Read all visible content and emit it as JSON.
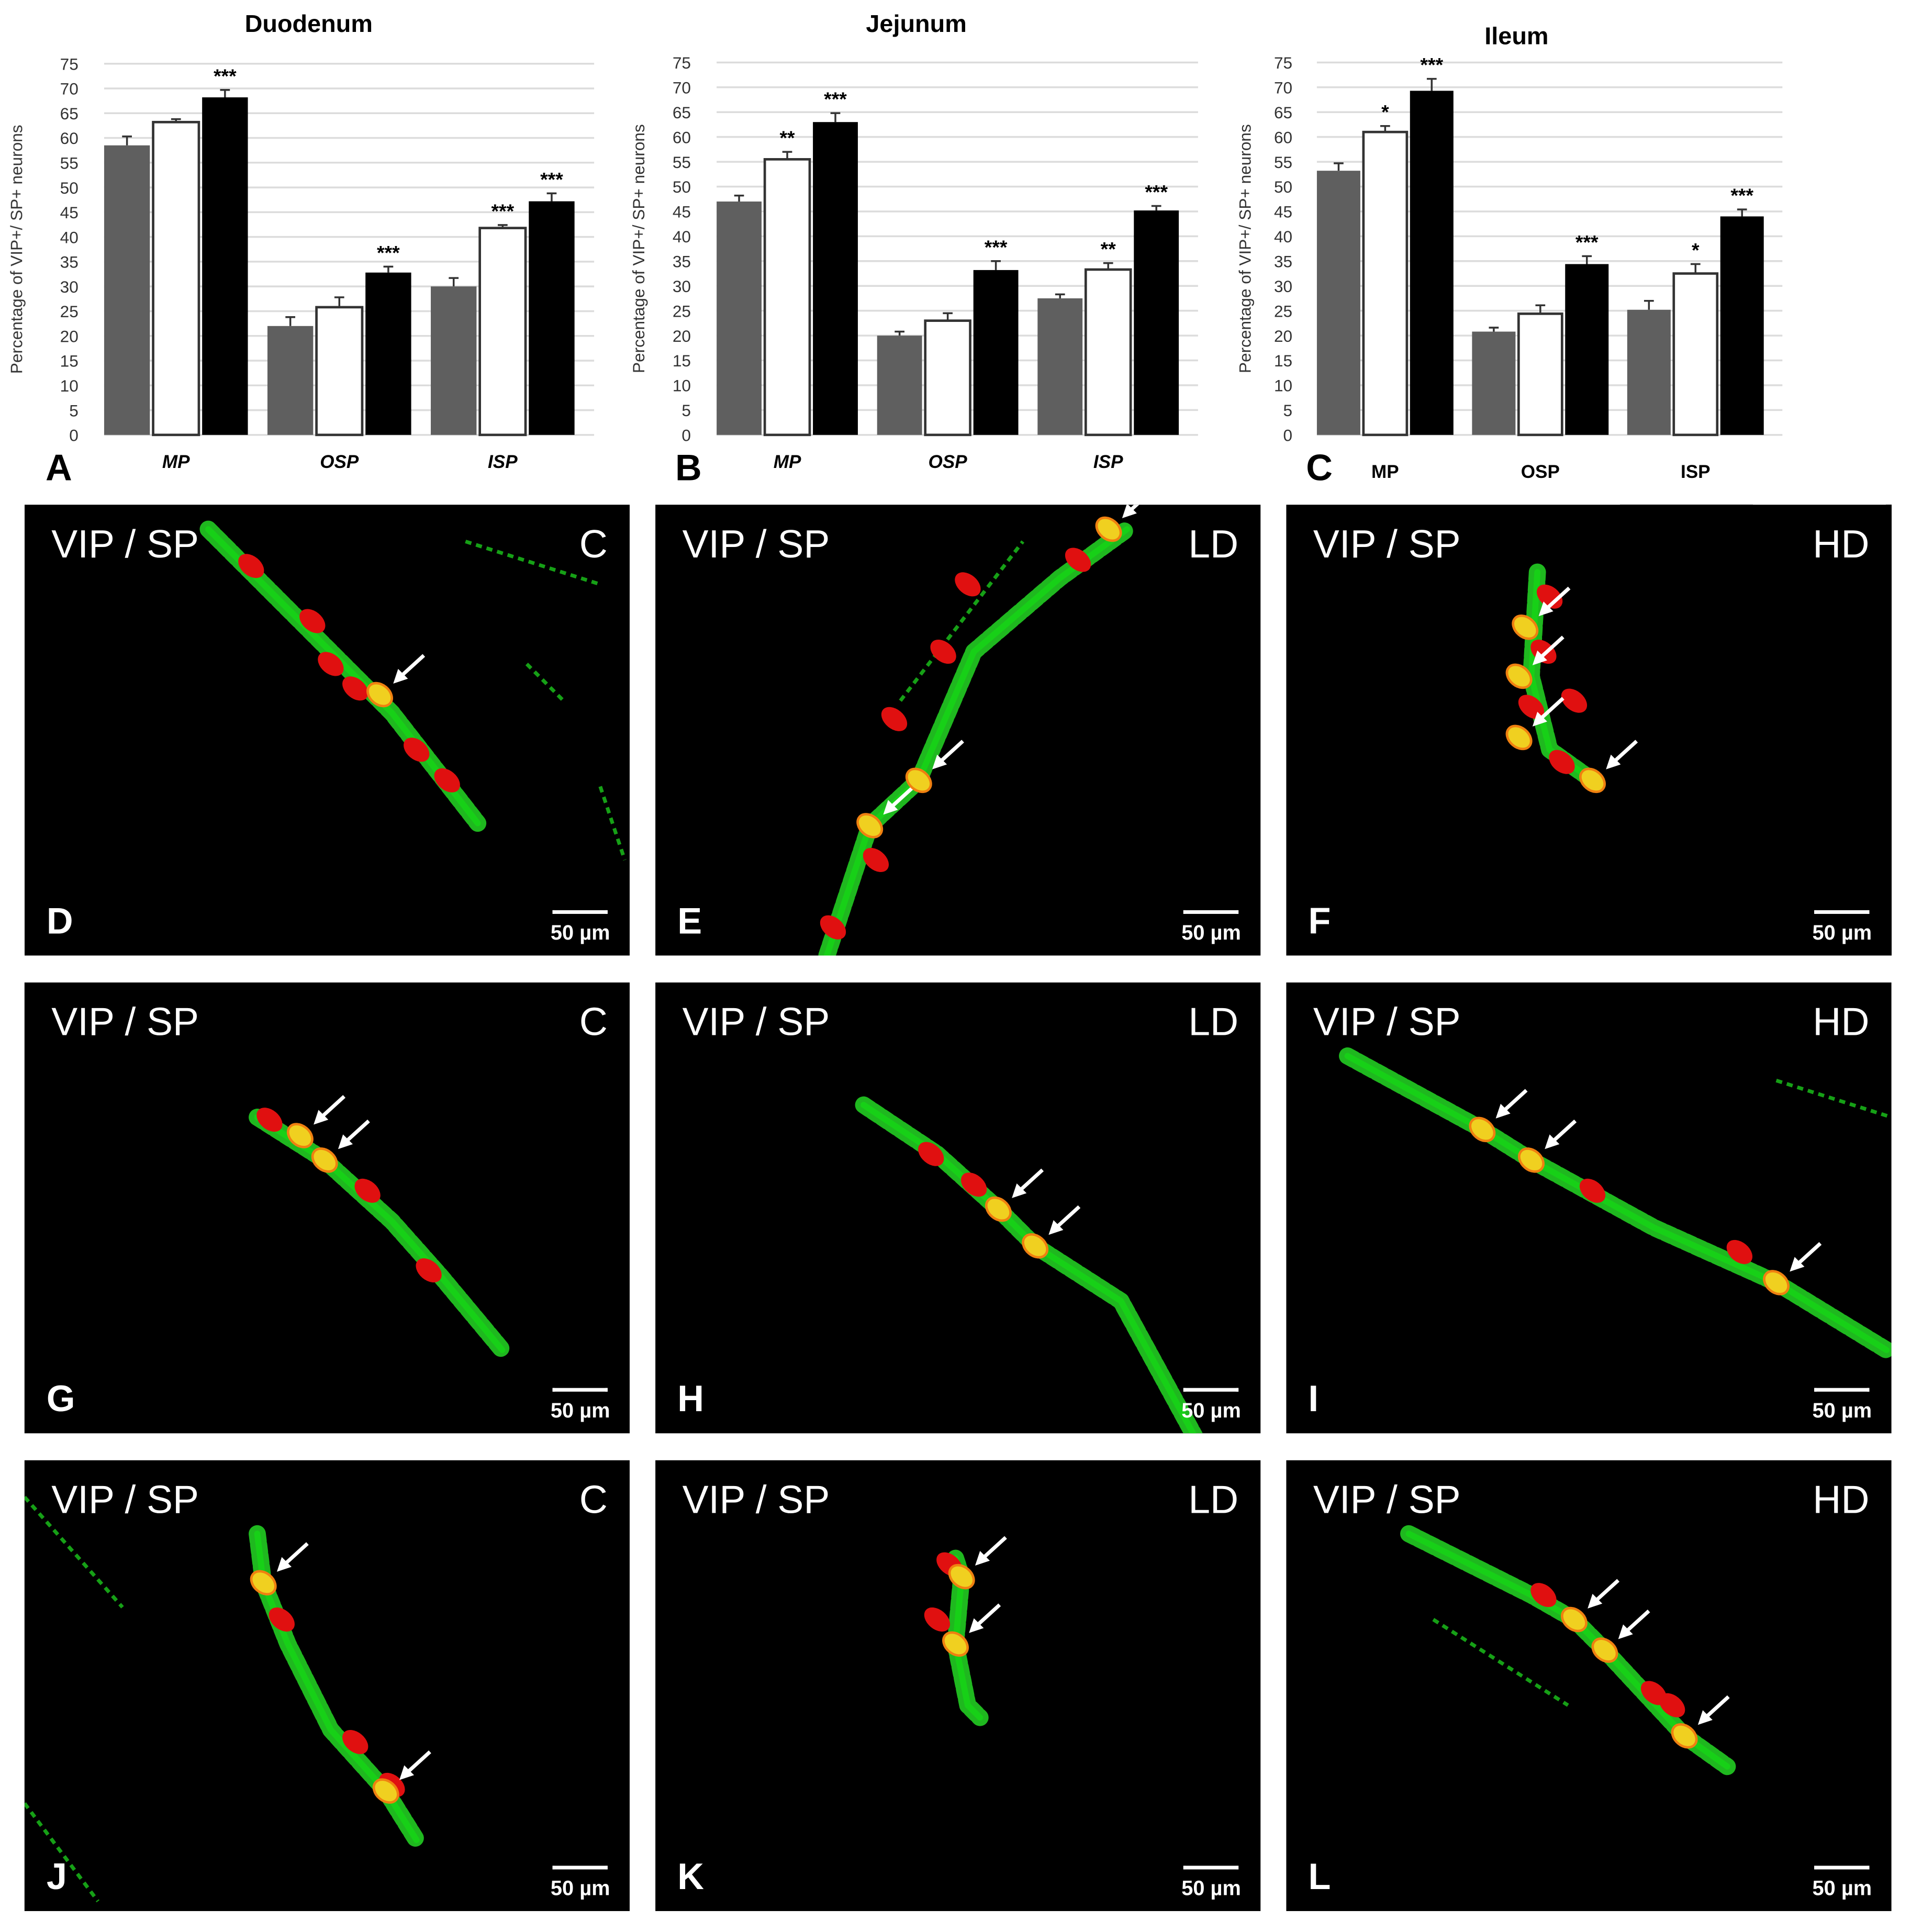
{
  "legend_colors": {
    "C": "#5f5f5f",
    "LD": "#ffffff",
    "HD": "#000000"
  },
  "chart_data": [
    {
      "type": "bar",
      "panel_label": "A",
      "title": "Duodenum",
      "ylabel": "Percentage of VIP+/ SP+ neurons",
      "ylim": [
        0,
        75
      ],
      "yticks": [
        0,
        5,
        10,
        15,
        20,
        25,
        30,
        35,
        40,
        45,
        50,
        55,
        60,
        65,
        70,
        75
      ],
      "grid": true,
      "categories": [
        "MP",
        "OSP",
        "ISP"
      ],
      "category_italic": true,
      "series": [
        {
          "color": "#5f5f5f",
          "values": [
            58.5,
            22.0,
            30.0
          ],
          "errors": [
            1.8,
            1.8,
            1.7
          ],
          "stars": [
            "",
            "",
            ""
          ]
        },
        {
          "color": "#ffffff",
          "values": [
            63.2,
            25.8,
            41.8
          ],
          "errors": [
            0.6,
            2.0,
            0.6
          ],
          "stars": [
            "",
            "",
            "***"
          ]
        },
        {
          "color": "#000000",
          "values": [
            68.2,
            32.8,
            47.2
          ],
          "errors": [
            1.5,
            1.2,
            1.6
          ],
          "stars": [
            "***",
            "***",
            "***"
          ]
        }
      ]
    },
    {
      "type": "bar",
      "panel_label": "B",
      "title": "Jejunum",
      "ylabel": "Percentage of VIP+/ SP+ neurons",
      "ylim": [
        0,
        75
      ],
      "yticks": [
        0,
        5,
        10,
        15,
        20,
        25,
        30,
        35,
        40,
        45,
        50,
        55,
        60,
        65,
        70,
        75
      ],
      "grid": true,
      "categories": [
        "MP",
        "OSP",
        "ISP"
      ],
      "category_italic": true,
      "series": [
        {
          "color": "#5f5f5f",
          "values": [
            47.0,
            20.0,
            27.5
          ],
          "errors": [
            1.2,
            0.8,
            0.8
          ],
          "stars": [
            "",
            "",
            ""
          ]
        },
        {
          "color": "#ffffff",
          "values": [
            55.5,
            23.0,
            33.3
          ],
          "errors": [
            1.5,
            1.5,
            1.3
          ],
          "stars": [
            "**",
            "",
            "**"
          ]
        },
        {
          "color": "#000000",
          "values": [
            63.0,
            33.2,
            45.2
          ],
          "errors": [
            1.8,
            1.8,
            0.9
          ],
          "stars": [
            "***",
            "***",
            "***"
          ]
        }
      ]
    },
    {
      "type": "bar",
      "panel_label": "C",
      "title": "Ileum",
      "ylabel": "Percentage of VIP+/ SP+ neurons",
      "ylim": [
        0,
        75
      ],
      "yticks": [
        0,
        5,
        10,
        15,
        20,
        25,
        30,
        35,
        40,
        45,
        50,
        55,
        60,
        65,
        70,
        75
      ],
      "grid": true,
      "categories": [
        "MP",
        "OSP",
        "ISP"
      ],
      "category_italic": false,
      "series": [
        {
          "color": "#5f5f5f",
          "values": [
            53.2,
            20.8,
            25.2
          ],
          "errors": [
            1.5,
            0.8,
            1.8
          ],
          "stars": [
            "",
            "",
            ""
          ]
        },
        {
          "color": "#ffffff",
          "values": [
            61.0,
            24.4,
            32.5
          ],
          "errors": [
            1.2,
            1.7,
            1.9
          ],
          "stars": [
            "*",
            "",
            "*"
          ]
        },
        {
          "color": "#000000",
          "values": [
            69.3,
            34.4,
            44.0
          ],
          "errors": [
            2.4,
            1.6,
            1.4
          ],
          "stars": [
            "***",
            "***",
            "***"
          ]
        }
      ]
    }
  ],
  "micrographs": [
    {
      "letter": "D",
      "stain": "VIP / SP",
      "group": "C",
      "scale": "50 µm"
    },
    {
      "letter": "E",
      "stain": "VIP / SP",
      "group": "LD",
      "scale": "50 µm"
    },
    {
      "letter": "F",
      "stain": "VIP / SP",
      "group": "HD",
      "scale": "50 µm"
    },
    {
      "letter": "G",
      "stain": "VIP / SP",
      "group": "C",
      "scale": "50 µm"
    },
    {
      "letter": "H",
      "stain": "VIP / SP",
      "group": "LD",
      "scale": "50 µm"
    },
    {
      "letter": "I",
      "stain": "VIP / SP",
      "group": "HD",
      "scale": "50 µm"
    },
    {
      "letter": "J",
      "stain": "VIP / SP",
      "group": "C",
      "scale": "50 µm"
    },
    {
      "letter": "K",
      "stain": "VIP / SP",
      "group": "LD",
      "scale": "50 µm"
    },
    {
      "letter": "L",
      "stain": "VIP / SP",
      "group": "HD",
      "scale": "50 µm"
    }
  ]
}
